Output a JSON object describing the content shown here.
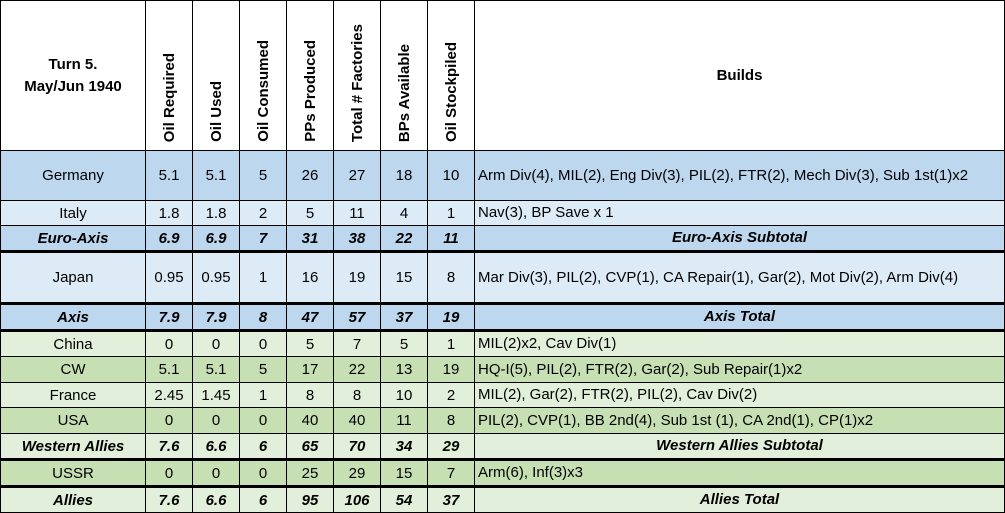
{
  "header": {
    "turn": "Turn 5.",
    "date": "May/Jun 1940",
    "columns": [
      "Oil Required",
      "Oil Used",
      "Oil Consumed",
      "PPs Produced",
      "Total # Factories",
      "BPs Available",
      "Oil Stockpiled"
    ],
    "builds": "Builds"
  },
  "colors": {
    "blue_dark": "#bdd7ee",
    "blue_light": "#ddebf7",
    "green_dark": "#c6e0b4",
    "green_light": "#e2efda"
  },
  "rows": [
    {
      "name": "Germany",
      "values": [
        "5.1",
        "5.1",
        "5",
        "26",
        "27",
        "18",
        "10"
      ],
      "builds": "Arm Div(4), MIL(2), Eng Div(3),  PIL(2), FTR(2), Mech Div(3), Sub 1st(1)x2"
    },
    {
      "name": "Italy",
      "values": [
        "1.8",
        "1.8",
        "2",
        "5",
        "11",
        "4",
        "1"
      ],
      "builds": "Nav(3), BP Save x 1"
    },
    {
      "name": "Euro-Axis",
      "values": [
        "6.9",
        "6.9",
        "7",
        "31",
        "38",
        "22",
        "11"
      ],
      "builds": "Euro-Axis Subtotal"
    },
    {
      "name": "Japan",
      "values": [
        "0.95",
        "0.95",
        "1",
        "16",
        "19",
        "15",
        "8"
      ],
      "builds": "Mar Div(3), PIL(2), CVP(1), CA Repair(1), Gar(2), Mot Div(2), Arm Div(4)"
    },
    {
      "name": "Axis",
      "values": [
        "7.9",
        "7.9",
        "8",
        "47",
        "57",
        "37",
        "19"
      ],
      "builds": "Axis Total"
    },
    {
      "name": "China",
      "values": [
        "0",
        "0",
        "0",
        "5",
        "7",
        "5",
        "1"
      ],
      "builds": "MIL(2)x2, Cav Div(1)"
    },
    {
      "name": "CW",
      "values": [
        "5.1",
        "5.1",
        "5",
        "17",
        "22",
        "13",
        "19"
      ],
      "builds": "HQ-I(5), PIL(2), FTR(2), Gar(2), Sub Repair(1)x2"
    },
    {
      "name": "France",
      "values": [
        "2.45",
        "1.45",
        "1",
        "8",
        "8",
        "10",
        "2"
      ],
      "builds": "MIL(2), Gar(2), FTR(2), PIL(2), Cav Div(2)"
    },
    {
      "name": "USA",
      "values": [
        "0",
        "0",
        "0",
        "40",
        "40",
        "11",
        "8"
      ],
      "builds": "PIL(2), CVP(1), BB 2nd(4), Sub 1st (1), CA 2nd(1), CP(1)x2"
    },
    {
      "name": "Western Allies",
      "values": [
        "7.6",
        "6.6",
        "6",
        "65",
        "70",
        "34",
        "29"
      ],
      "builds": "Western Allies Subtotal"
    },
    {
      "name": "USSR",
      "values": [
        "0",
        "0",
        "0",
        "25",
        "29",
        "15",
        "7"
      ],
      "builds": "Arm(6), Inf(3)x3"
    },
    {
      "name": "Allies",
      "values": [
        "7.6",
        "6.6",
        "6",
        "95",
        "106",
        "54",
        "37"
      ],
      "builds": "Allies Total"
    }
  ]
}
